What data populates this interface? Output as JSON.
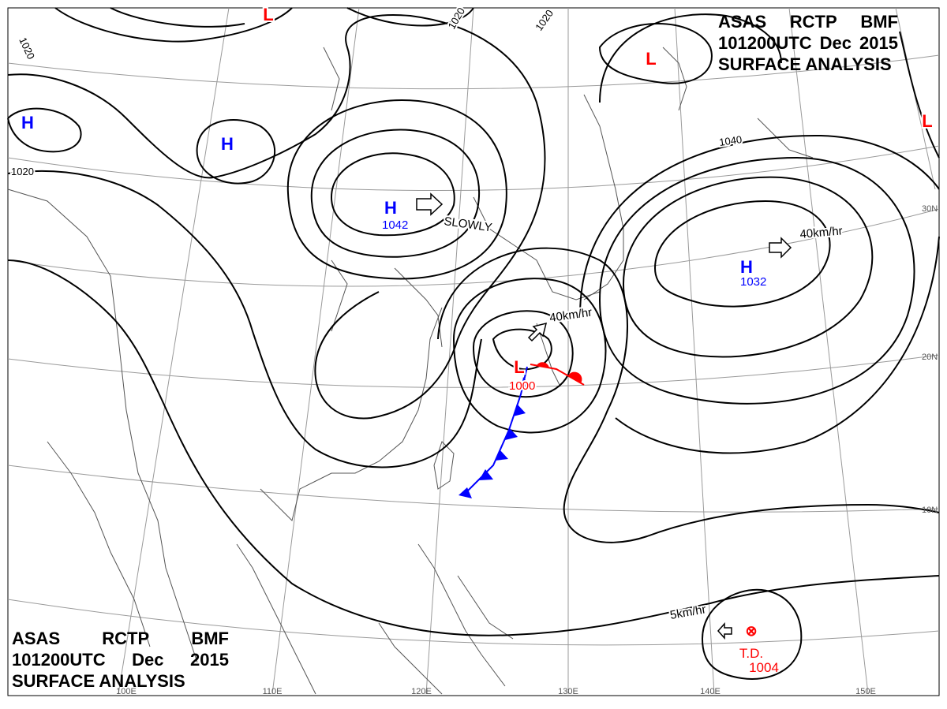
{
  "header": {
    "line1": [
      "ASAS",
      "RCTP",
      "BMF"
    ],
    "line2": [
      "101200UTC",
      "Dec",
      "2015"
    ],
    "line3": "SURFACE ANALYSIS"
  },
  "colors": {
    "isobar": "#000000",
    "grid": "#9a9a9a",
    "coast": "#555555",
    "high": "#0000ff",
    "low": "#ff0000",
    "cold_front": "#0000ff",
    "warm_front": "#ff0000",
    "text": "#000000"
  },
  "isobar_labels": [
    "1020",
    "1020",
    "1020",
    "1020",
    "1040"
  ],
  "pressure_systems": [
    {
      "type": "H",
      "value": "1042",
      "color": "#0000ff"
    },
    {
      "type": "H",
      "value": "1032",
      "color": "#0000ff"
    },
    {
      "type": "H",
      "value": "",
      "color": "#0000ff"
    },
    {
      "type": "H",
      "value": "",
      "color": "#0000ff"
    },
    {
      "type": "L",
      "value": "1000",
      "color": "#ff0000"
    },
    {
      "type": "L",
      "value": "",
      "color": "#ff0000"
    },
    {
      "type": "L",
      "value": "",
      "color": "#ff0000"
    },
    {
      "type": "L",
      "value": "",
      "color": "#ff0000"
    }
  ],
  "motion_labels": [
    "SLOWLY",
    "40km/hr",
    "40km/hr",
    "5km/hr"
  ],
  "tropical_depression": {
    "symbol": "⊗",
    "label": "T.D.",
    "pressure": "1004"
  },
  "longitude_labels": [
    "100E",
    "110E",
    "120E",
    "130E",
    "140E",
    "150E"
  ],
  "latitude_labels": [
    "30N",
    "20N",
    "10N"
  ]
}
